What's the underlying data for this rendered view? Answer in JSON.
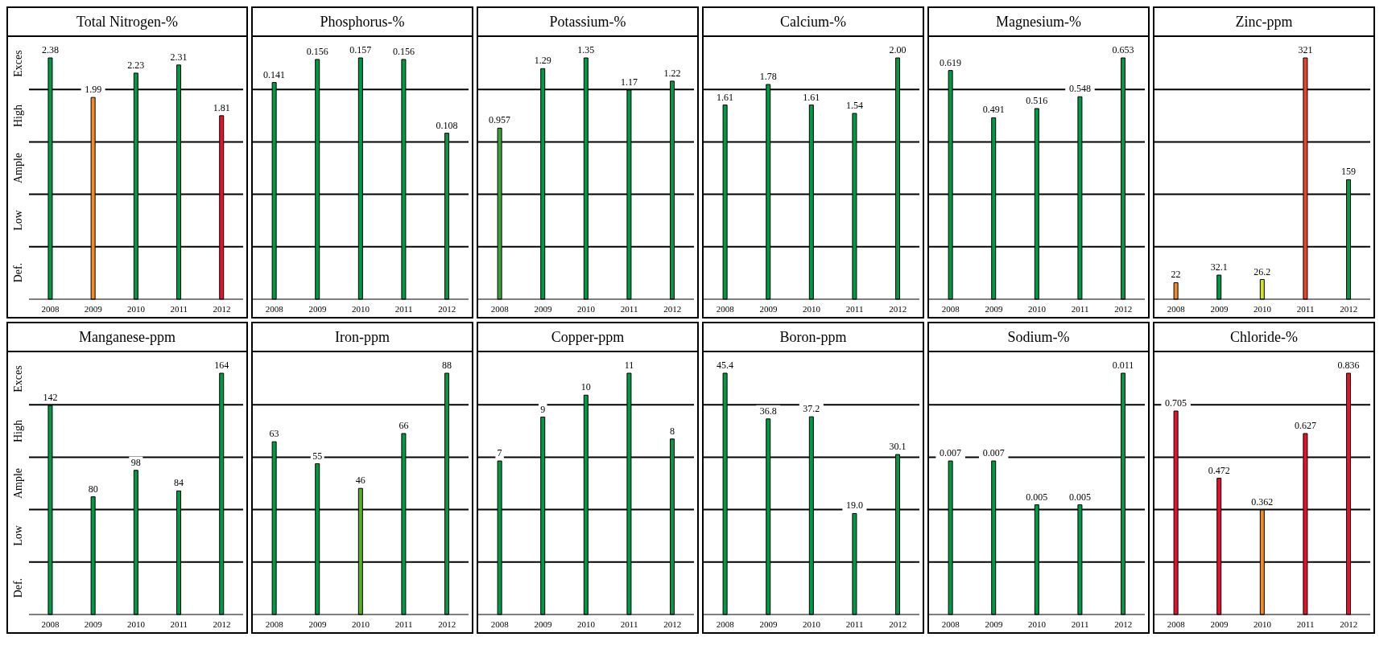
{
  "chart_data": [
    {
      "type": "bar",
      "title": "Total Nitrogen-%",
      "categories": [
        "2008",
        "2009",
        "2010",
        "2011",
        "2012"
      ],
      "values": [
        2.38,
        1.99,
        2.23,
        2.31,
        1.81
      ],
      "colors": [
        "#009a44",
        "#f08a2a",
        "#009a44",
        "#009a44",
        "#e8112d"
      ],
      "value_labels": [
        "2.38",
        "1.99",
        "2.23",
        "2.31",
        "1.81"
      ],
      "grid": "y",
      "annotations": [
        "Exces",
        "High",
        "Ample",
        "Low",
        "Def."
      ]
    },
    {
      "type": "bar",
      "title": "Phosphorus-%",
      "categories": [
        "2008",
        "2009",
        "2010",
        "2011",
        "2012"
      ],
      "values": [
        0.141,
        0.156,
        0.157,
        0.156,
        0.108
      ],
      "colors": [
        "#009a44",
        "#009a44",
        "#009a44",
        "#009a44",
        "#009a44"
      ],
      "value_labels": [
        "0.141",
        "0.156",
        "0.157",
        "0.156",
        "0.108"
      ],
      "grid": "y"
    },
    {
      "type": "bar",
      "title": "Potassium-%",
      "categories": [
        "2008",
        "2009",
        "2010",
        "2011",
        "2012"
      ],
      "values": [
        0.957,
        1.29,
        1.35,
        1.17,
        1.22
      ],
      "colors": [
        "#3aa534",
        "#009a44",
        "#009a44",
        "#009a44",
        "#009a44"
      ],
      "value_labels": [
        "0.957",
        "1.29",
        "1.35",
        "1.17",
        "1.22"
      ],
      "grid": "y"
    },
    {
      "type": "bar",
      "title": "Calcium-%",
      "categories": [
        "2008",
        "2009",
        "2010",
        "2011",
        "2012"
      ],
      "values": [
        1.61,
        1.78,
        1.61,
        1.54,
        2.0
      ],
      "colors": [
        "#009a44",
        "#009a44",
        "#009a44",
        "#009a44",
        "#009a44"
      ],
      "value_labels": [
        "1.61",
        "1.78",
        "1.61",
        "1.54",
        "2.00"
      ],
      "grid": "y"
    },
    {
      "type": "bar",
      "title": "Magnesium-%",
      "categories": [
        "2008",
        "2009",
        "2010",
        "2011",
        "2012"
      ],
      "values": [
        0.619,
        0.491,
        0.516,
        0.548,
        0.653
      ],
      "colors": [
        "#009a44",
        "#009a44",
        "#009a44",
        "#009a44",
        "#009a44"
      ],
      "value_labels": [
        "0.619",
        "0.491",
        "0.516",
        "0.548",
        "0.653"
      ],
      "grid": "y"
    },
    {
      "type": "bar",
      "title": "Zinc-ppm",
      "categories": [
        "2008",
        "2009",
        "2010",
        "2011",
        "2012"
      ],
      "values": [
        22,
        32.1,
        26.2,
        321,
        159
      ],
      "colors": [
        "#f08a2a",
        "#009a44",
        "#d4e02a",
        "#e8462a",
        "#009a44"
      ],
      "value_labels": [
        "22",
        "32.1",
        "26.2",
        "321",
        "159"
      ],
      "grid": "y"
    },
    {
      "type": "bar",
      "title": "Manganese-ppm",
      "categories": [
        "2008",
        "2009",
        "2010",
        "2011",
        "2012"
      ],
      "values": [
        142,
        80,
        98,
        84,
        164
      ],
      "colors": [
        "#009a44",
        "#009a44",
        "#009a44",
        "#009a44",
        "#009a44"
      ],
      "value_labels": [
        "142",
        "80",
        "98",
        "84",
        "164"
      ],
      "grid": "y",
      "annotations": [
        "Exces",
        "High",
        "Ample",
        "Low",
        "Def."
      ]
    },
    {
      "type": "bar",
      "title": "Iron-ppm",
      "categories": [
        "2008",
        "2009",
        "2010",
        "2011",
        "2012"
      ],
      "values": [
        63,
        55,
        46,
        66,
        88
      ],
      "colors": [
        "#009a44",
        "#009a44",
        "#5aad2e",
        "#009a44",
        "#009a44"
      ],
      "value_labels": [
        "63",
        "55",
        "46",
        "66",
        "88"
      ],
      "grid": "y"
    },
    {
      "type": "bar",
      "title": "Copper-ppm",
      "categories": [
        "2008",
        "2009",
        "2010",
        "2011",
        "2012"
      ],
      "values": [
        7,
        9,
        10,
        11,
        8
      ],
      "colors": [
        "#009a44",
        "#009a44",
        "#009a44",
        "#009a44",
        "#009a44"
      ],
      "value_labels": [
        "7",
        "9",
        "10",
        "11",
        "8"
      ],
      "grid": "y"
    },
    {
      "type": "bar",
      "title": "Boron-ppm",
      "categories": [
        "2008",
        "2009",
        "2010",
        "2011",
        "2012"
      ],
      "values": [
        45.4,
        36.8,
        37.2,
        19.0,
        30.1
      ],
      "colors": [
        "#009a44",
        "#009a44",
        "#009a44",
        "#009a44",
        "#009a44"
      ],
      "value_labels": [
        "45.4",
        "36.8",
        "37.2",
        "19.0",
        "30.1"
      ],
      "grid": "y"
    },
    {
      "type": "bar",
      "title": "Sodium-%",
      "categories": [
        "2008",
        "2009",
        "2010",
        "2011",
        "2012"
      ],
      "values": [
        0.007,
        0.007,
        0.005,
        0.005,
        0.011
      ],
      "colors": [
        "#009a44",
        "#009a44",
        "#009a44",
        "#009a44",
        "#009a44"
      ],
      "value_labels": [
        "0.007",
        "0.007",
        "0.005",
        "0.005",
        "0.011"
      ],
      "grid": "y"
    },
    {
      "type": "bar",
      "title": "Chloride-%",
      "categories": [
        "2008",
        "2009",
        "2010",
        "2011",
        "2012"
      ],
      "values": [
        0.705,
        0.472,
        0.362,
        0.627,
        0.836
      ],
      "colors": [
        "#e8112d",
        "#e8112d",
        "#f08a2a",
        "#e8112d",
        "#e8112d"
      ],
      "value_labels": [
        "0.705",
        "0.472",
        "0.362",
        "0.627",
        "0.836"
      ],
      "grid": "y"
    }
  ]
}
